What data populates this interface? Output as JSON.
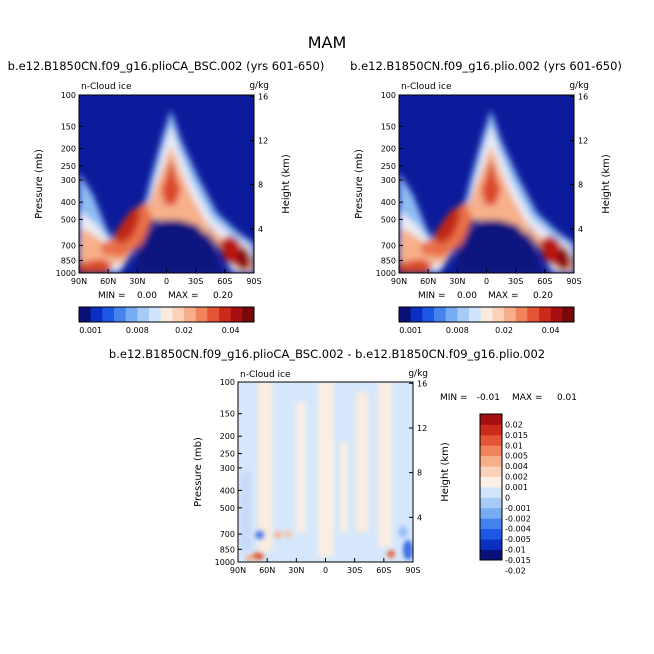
{
  "page_title": "MAM",
  "colors": {
    "main": [
      "#0a107a",
      "#0b2fc0",
      "#1c57e6",
      "#4483ee",
      "#77abf3",
      "#a5cbf6",
      "#cfe3fa",
      "#f8ecdf",
      "#fad2b9",
      "#f7ae8b",
      "#f0835c",
      "#e35535",
      "#cc2a1b",
      "#a50f10",
      "#780709"
    ],
    "diff": [
      "#0a107a",
      "#0b2fc0",
      "#1c57e6",
      "#4483ee",
      "#77abf3",
      "#a5cbf6",
      "#d2e5fb",
      "#faf0e6",
      "#fad2b9",
      "#f7ae8b",
      "#f0835c",
      "#e35535",
      "#cc2a1b",
      "#a50f10"
    ]
  },
  "chart_data": [
    {
      "type": "heatmap",
      "title": "b.e12.B1850CN.f09_g16.plioCA_BSC.002 (yrs 601-650)",
      "variable_label": "n-Cloud ice",
      "units_label": "g/kg",
      "xlabel": "",
      "ylabel": "Pressure (mb)",
      "ylabel_right": "Height (km)",
      "x_ticks": [
        "90N",
        "60N",
        "30N",
        "0",
        "30S",
        "60S",
        "90S"
      ],
      "y_ticks": [
        "100",
        "150",
        "200",
        "250",
        "300",
        "400",
        "500",
        "700",
        "850",
        "1000"
      ],
      "y_ticks_right": [
        "16",
        "12",
        "8",
        "4"
      ],
      "min_label": "MIN =",
      "min_value": "0.00",
      "max_label": "MAX =",
      "max_value": "0.20",
      "colorbar_labels": [
        "0.001",
        "0.008",
        "0.02",
        "0.04"
      ],
      "levels": [
        0.001,
        0.002,
        0.004,
        0.006,
        0.008,
        0.01,
        0.012,
        0.015,
        0.02,
        0.025,
        0.03,
        0.035,
        0.04,
        0.05
      ],
      "colorbar": "main"
    },
    {
      "type": "heatmap",
      "title": "b.e12.B1850CN.f09_g16.plio.002 (yrs 601-650)",
      "variable_label": "n-Cloud ice",
      "units_label": "g/kg",
      "xlabel": "",
      "ylabel": "Pressure (mb)",
      "ylabel_right": "Height (km)",
      "x_ticks": [
        "90N",
        "60N",
        "30N",
        "0",
        "30S",
        "60S",
        "90S"
      ],
      "y_ticks": [
        "100",
        "150",
        "200",
        "250",
        "300",
        "400",
        "500",
        "700",
        "850",
        "1000"
      ],
      "y_ticks_right": [
        "16",
        "12",
        "8",
        "4"
      ],
      "min_label": "MIN =",
      "min_value": "0.00",
      "max_label": "MAX =",
      "max_value": "0.20",
      "colorbar_labels": [
        "0.001",
        "0.008",
        "0.02",
        "0.04"
      ],
      "levels": [
        0.001,
        0.002,
        0.004,
        0.006,
        0.008,
        0.01,
        0.012,
        0.015,
        0.02,
        0.025,
        0.03,
        0.035,
        0.04,
        0.05
      ],
      "colorbar": "main"
    },
    {
      "type": "heatmap",
      "title": "b.e12.B1850CN.f09_g16.plioCA_BSC.002 - b.e12.B1850CN.f09_g16.plio.002",
      "variable_label": "n-Cloud ice",
      "units_label": "g/kg",
      "xlabel": "",
      "ylabel": "Pressure (mb)",
      "ylabel_right": "Height (km)",
      "x_ticks": [
        "90N",
        "60N",
        "30N",
        "0",
        "30S",
        "60S",
        "90S"
      ],
      "y_ticks": [
        "100",
        "150",
        "200",
        "250",
        "300",
        "400",
        "500",
        "700",
        "850",
        "1000"
      ],
      "y_ticks_right": [
        "16",
        "12",
        "8",
        "4"
      ],
      "min_label": "MIN =",
      "min_value": "-0.01",
      "max_label": "MAX =",
      "max_value": "0.01",
      "colorbar_labels": [
        "0.02",
        "0.015",
        "0.01",
        "0.005",
        "0.004",
        "0.002",
        "0.001",
        "0",
        "-0.001",
        "-0.002",
        "-0.004",
        "-0.005",
        "-0.01",
        "-0.015",
        "-0.02"
      ],
      "levels": [
        -0.02,
        -0.015,
        -0.01,
        -0.005,
        -0.004,
        -0.002,
        -0.001,
        0,
        0.001,
        0.002,
        0.004,
        0.005,
        0.01,
        0.015,
        0.02
      ],
      "colorbar": "diff"
    }
  ]
}
